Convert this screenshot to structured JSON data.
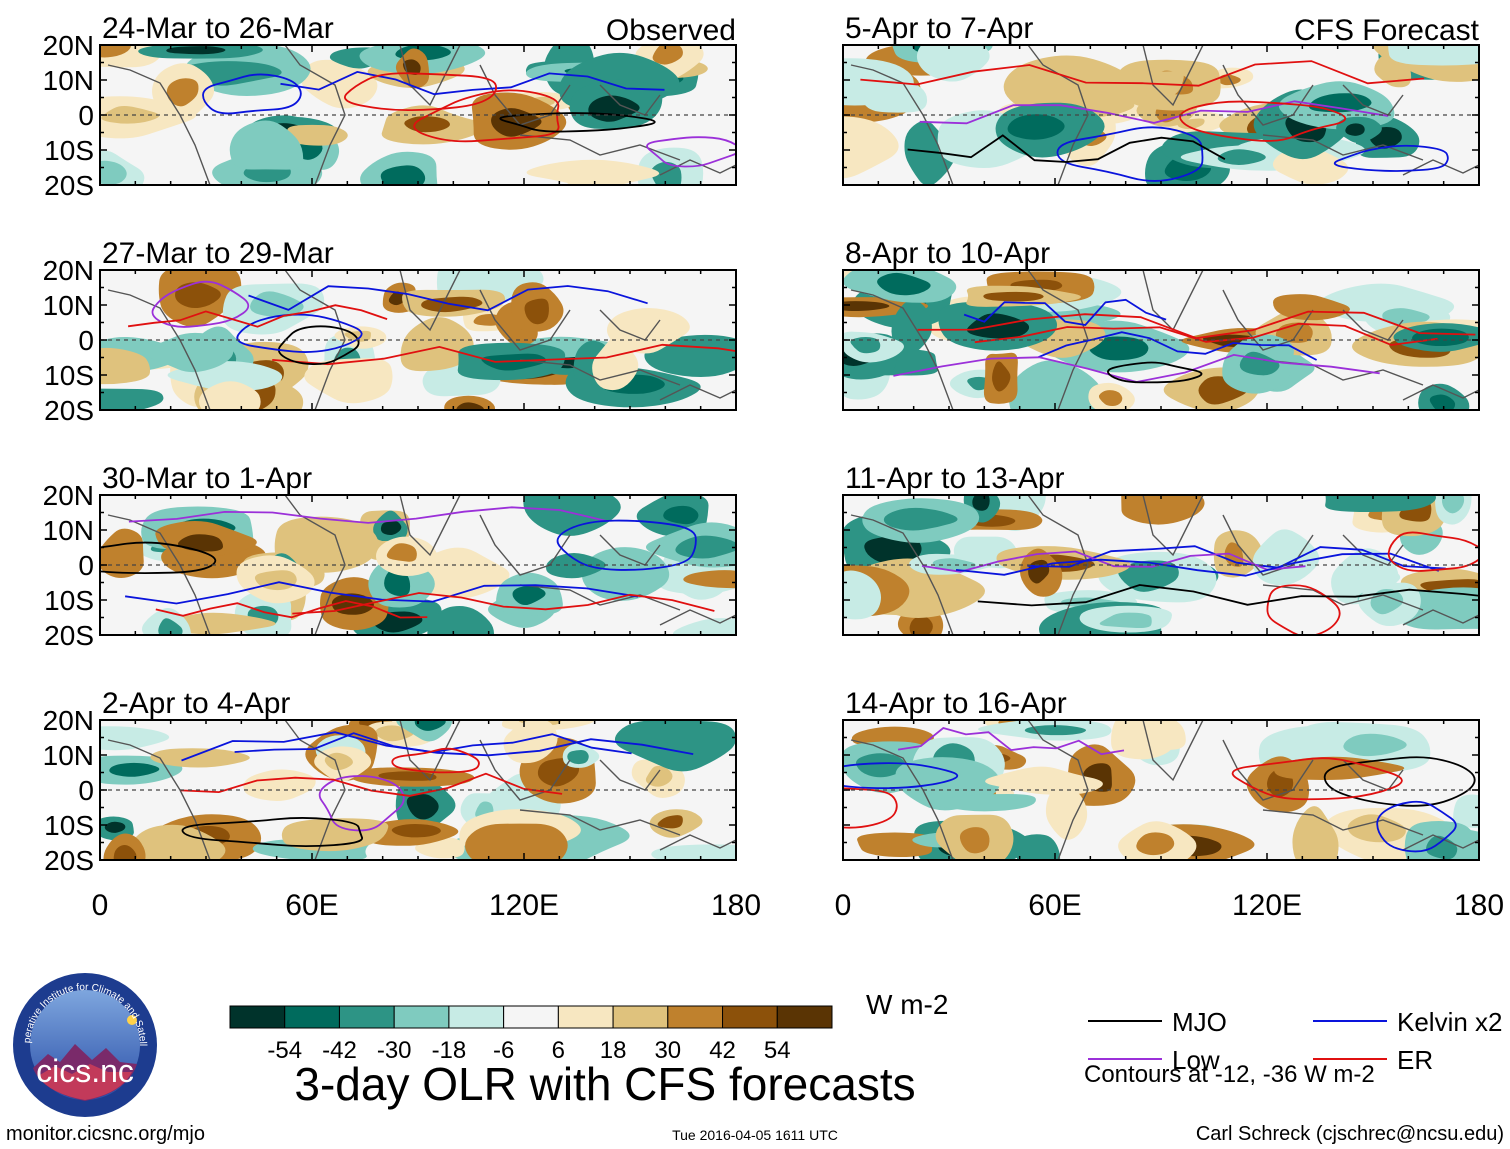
{
  "chart_data": {
    "type": "heatmap",
    "title": "3-day OLR with CFS forecasts",
    "units": "W m-2",
    "columns": [
      {
        "header": "Observed",
        "panels": [
          "24-Mar to 26-Mar",
          "27-Mar to 29-Mar",
          "30-Mar to 1-Apr",
          "2-Apr to 4-Apr"
        ]
      },
      {
        "header": "CFS Forecast",
        "panels": [
          "5-Apr to 7-Apr",
          "8-Apr to 10-Apr",
          "11-Apr to 13-Apr",
          "14-Apr to 16-Apr"
        ]
      }
    ],
    "y_ticks": [
      "20N",
      "10N",
      "0",
      "10S",
      "20S"
    ],
    "y_values": [
      20,
      10,
      0,
      -10,
      -20
    ],
    "x_ticks": [
      "0",
      "60E",
      "120E",
      "180"
    ],
    "x_values": [
      0,
      60,
      120,
      180
    ],
    "xlim": [
      0,
      180
    ],
    "ylim": [
      -20,
      20
    ],
    "colorbar": {
      "levels": [
        "-54",
        "-42",
        "-30",
        "-18",
        "-6",
        "6",
        "18",
        "30",
        "42",
        "54"
      ],
      "colors": [
        "#00332b",
        "#006b5d",
        "#2d9485",
        "#7fcbbf",
        "#c7ebe5",
        "#f5f5f5",
        "#f7e7c1",
        "#dfc27d",
        "#bf812d",
        "#8c510a",
        "#5a3404"
      ]
    },
    "legend": [
      {
        "label": "MJO",
        "color": "#000000"
      },
      {
        "label": "Kelvin x2",
        "color": "#0a14dc"
      },
      {
        "label": "Low",
        "color": "#9b30d9"
      },
      {
        "label": "ER",
        "color": "#e01010"
      }
    ],
    "contour_note": "Contours at -12, -36 W m-2"
  },
  "footer": {
    "logo_ring_text": "Cooperative Institute for Climate and Satellites",
    "logo_text": "cics.nc",
    "url": "monitor.cicsnc.org/mjo",
    "timestamp": "Tue 2016-04-05 1611 UTC",
    "credit": "Carl Schreck (cjschrec@ncsu.edu)"
  }
}
